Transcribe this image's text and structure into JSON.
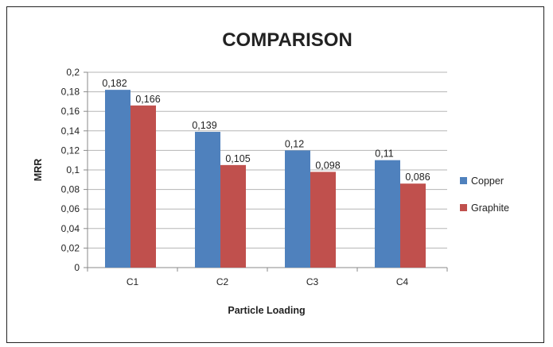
{
  "chart_data": {
    "type": "bar",
    "title": "COMPARISON",
    "xlabel": "Particle Loading",
    "ylabel": "MRR",
    "categories": [
      "C1",
      "C2",
      "C3",
      "C4"
    ],
    "series": [
      {
        "name": "Copper",
        "values": [
          0.182,
          0.139,
          0.12,
          0.11
        ],
        "labels": [
          "0,182",
          "0,139",
          "0,12",
          "0,11"
        ],
        "color": "#4F81BD"
      },
      {
        "name": "Graphite",
        "values": [
          0.166,
          0.105,
          0.098,
          0.086
        ],
        "labels": [
          "0,166",
          "0,105",
          "0,098",
          "0,086"
        ],
        "color": "#C0504D"
      }
    ],
    "ylim": [
      0,
      0.2
    ],
    "yticks": [
      0,
      0.02,
      0.04,
      0.06,
      0.08,
      0.1,
      0.12,
      0.14,
      0.16,
      0.18,
      0.2
    ],
    "ytick_labels": [
      "0",
      "0,02",
      "0,04",
      "0,06",
      "0,08",
      "0,1",
      "0,12",
      "0,14",
      "0,16",
      "0,18",
      "0,2"
    ],
    "grid": true,
    "legend_position": "right"
  }
}
